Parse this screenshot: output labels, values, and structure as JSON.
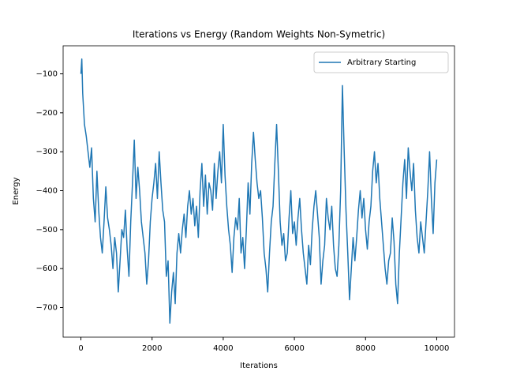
{
  "chart_data": {
    "type": "line",
    "title": "Iterations vs Energy (Random Weights Non-Symetric)",
    "x_label": "Iterations",
    "y_label": "Energy",
    "x": [
      0,
      25,
      50,
      100,
      150,
      200,
      250,
      300,
      350,
      400,
      450,
      500,
      550,
      600,
      650,
      700,
      750,
      800,
      850,
      900,
      950,
      1000,
      1050,
      1100,
      1150,
      1200,
      1250,
      1300,
      1350,
      1400,
      1450,
      1500,
      1550,
      1600,
      1650,
      1700,
      1750,
      1800,
      1850,
      1900,
      1950,
      2000,
      2050,
      2100,
      2150,
      2200,
      2250,
      2300,
      2350,
      2400,
      2450,
      2500,
      2550,
      2600,
      2650,
      2700,
      2750,
      2800,
      2850,
      2900,
      2950,
      3000,
      3050,
      3100,
      3150,
      3200,
      3250,
      3300,
      3350,
      3400,
      3450,
      3500,
      3550,
      3600,
      3650,
      3700,
      3750,
      3800,
      3850,
      3900,
      3950,
      4000,
      4050,
      4100,
      4150,
      4200,
      4250,
      4300,
      4350,
      4400,
      4450,
      4500,
      4550,
      4600,
      4650,
      4700,
      4750,
      4800,
      4850,
      4900,
      4950,
      5000,
      5050,
      5100,
      5150,
      5200,
      5250,
      5300,
      5350,
      5400,
      5450,
      5500,
      5550,
      5600,
      5650,
      5700,
      5750,
      5800,
      5850,
      5900,
      5950,
      6000,
      6050,
      6100,
      6150,
      6200,
      6250,
      6300,
      6350,
      6400,
      6450,
      6500,
      6550,
      6600,
      6650,
      6700,
      6750,
      6800,
      6850,
      6900,
      6950,
      7000,
      7050,
      7100,
      7150,
      7200,
      7250,
      7300,
      7350,
      7400,
      7450,
      7500,
      7550,
      7600,
      7650,
      7700,
      7750,
      7800,
      7850,
      7900,
      7950,
      8000,
      8050,
      8100,
      8150,
      8200,
      8250,
      8300,
      8350,
      8400,
      8450,
      8500,
      8550,
      8600,
      8650,
      8700,
      8750,
      8800,
      8850,
      8900,
      8950,
      9000,
      9050,
      9100,
      9150,
      9200,
      9250,
      9300,
      9350,
      9400,
      9450,
      9500,
      9550,
      9600,
      9650,
      9700,
      9750,
      9800,
      9850,
      9900,
      9950,
      10000
    ],
    "series": [
      {
        "name": "Arbitrary Starting",
        "color": "#1f77b4",
        "values": [
          -100,
          -62,
          -150,
          -230,
          -260,
          -300,
          -340,
          -290,
          -420,
          -480,
          -350,
          -450,
          -520,
          -560,
          -480,
          -390,
          -470,
          -500,
          -540,
          -600,
          -520,
          -560,
          -660,
          -580,
          -500,
          -520,
          -450,
          -550,
          -620,
          -480,
          -380,
          -270,
          -420,
          -340,
          -400,
          -480,
          -520,
          -560,
          -640,
          -580,
          -480,
          -420,
          -380,
          -330,
          -420,
          -300,
          -380,
          -450,
          -480,
          -620,
          -580,
          -740,
          -660,
          -610,
          -690,
          -560,
          -510,
          -560,
          -500,
          -460,
          -520,
          -440,
          -400,
          -460,
          -420,
          -490,
          -440,
          -520,
          -400,
          -330,
          -440,
          -360,
          -460,
          -380,
          -400,
          -450,
          -330,
          -420,
          -350,
          -300,
          -380,
          -230,
          -360,
          -440,
          -500,
          -540,
          -610,
          -520,
          -470,
          -500,
          -420,
          -560,
          -520,
          -600,
          -500,
          -380,
          -460,
          -330,
          -250,
          -320,
          -380,
          -420,
          -400,
          -470,
          -560,
          -600,
          -660,
          -560,
          -480,
          -440,
          -330,
          -230,
          -350,
          -480,
          -540,
          -510,
          -580,
          -560,
          -470,
          -400,
          -510,
          -480,
          -540,
          -470,
          -420,
          -500,
          -560,
          -600,
          -640,
          -540,
          -590,
          -500,
          -440,
          -400,
          -460,
          -520,
          -640,
          -580,
          -540,
          -420,
          -470,
          -500,
          -440,
          -540,
          -600,
          -620,
          -540,
          -400,
          -130,
          -300,
          -450,
          -560,
          -680,
          -600,
          -520,
          -580,
          -520,
          -450,
          -400,
          -470,
          -420,
          -500,
          -550,
          -480,
          -440,
          -350,
          -300,
          -380,
          -330,
          -420,
          -480,
          -540,
          -600,
          -640,
          -580,
          -560,
          -470,
          -530,
          -640,
          -690,
          -560,
          -470,
          -380,
          -320,
          -420,
          -290,
          -350,
          -400,
          -330,
          -450,
          -520,
          -560,
          -480,
          -520,
          -560,
          -480,
          -400,
          -300,
          -420,
          -510,
          -380,
          -320
        ]
      }
    ],
    "xlim": [
      -500,
      10500
    ],
    "ylim": [
      -776,
      -28
    ],
    "xticks": [
      0,
      2000,
      4000,
      6000,
      8000,
      10000
    ],
    "yticks": [
      {
        "value": -700,
        "label": "−700"
      },
      {
        "value": -600,
        "label": "−600"
      },
      {
        "value": -500,
        "label": "−500"
      },
      {
        "value": -400,
        "label": "−400"
      },
      {
        "value": -300,
        "label": "−300"
      },
      {
        "value": -200,
        "label": "−200"
      },
      {
        "value": -100,
        "label": "−100"
      }
    ],
    "legend": "upper right",
    "grid": false
  }
}
